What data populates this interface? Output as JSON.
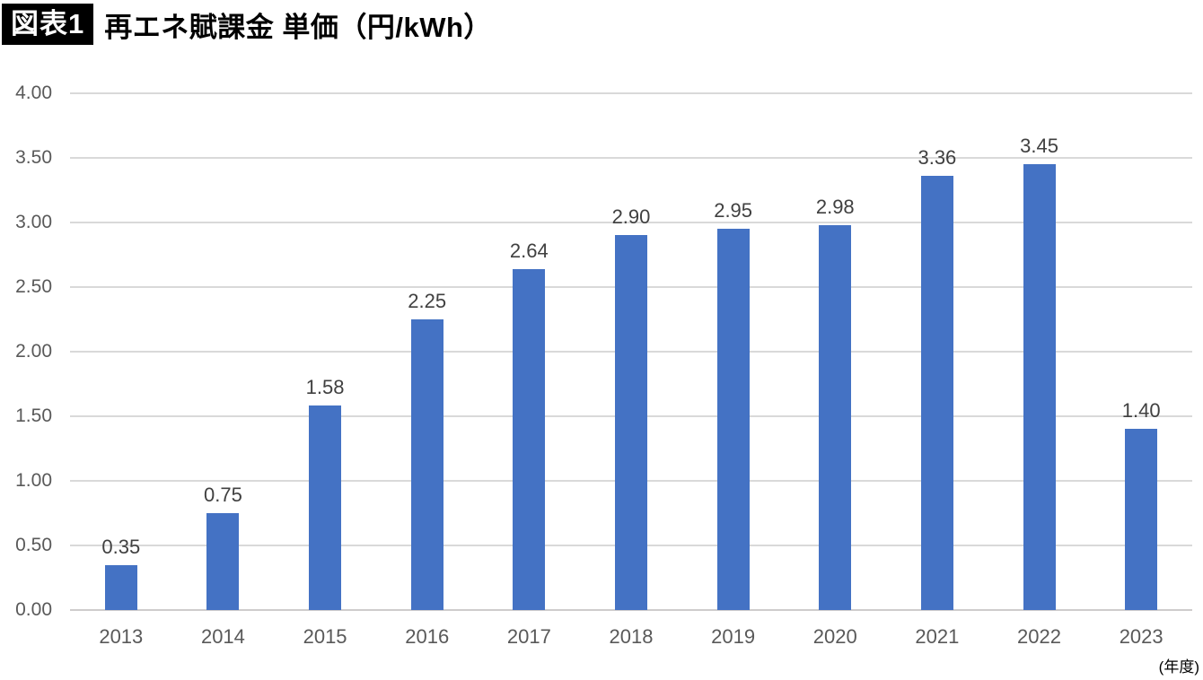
{
  "header": {
    "badge": "図表1",
    "title": "再エネ賦課金 単価（円/kWh）"
  },
  "chart_data": {
    "type": "bar",
    "title": "再エネ賦課金 単価（円/kWh）",
    "categories": [
      "2013",
      "2014",
      "2015",
      "2016",
      "2017",
      "2018",
      "2019",
      "2020",
      "2021",
      "2022",
      "2023"
    ],
    "values": [
      0.35,
      0.75,
      1.58,
      2.25,
      2.64,
      2.9,
      2.95,
      2.98,
      3.36,
      3.45,
      1.4
    ],
    "data_labels": [
      "0.35",
      "0.75",
      "1.58",
      "2.25",
      "2.64",
      "2.90",
      "2.95",
      "2.98",
      "3.36",
      "3.45",
      "1.40"
    ],
    "xlabel": "（年度）",
    "xlabel_display": "(年度)",
    "ylabel": "",
    "ylim": [
      0,
      4
    ],
    "ytick_step": 0.5,
    "yticks": [
      "0.00",
      "0.50",
      "1.00",
      "1.50",
      "2.00",
      "2.50",
      "3.00",
      "3.50",
      "4.00"
    ],
    "grid": true,
    "legend": "none",
    "bar_color": "#4472C4",
    "gridline_color": "#D9D9D9",
    "baseline_color": "#CECCCC",
    "axis_text_color": "#595959",
    "data_label_color": "#404040"
  }
}
